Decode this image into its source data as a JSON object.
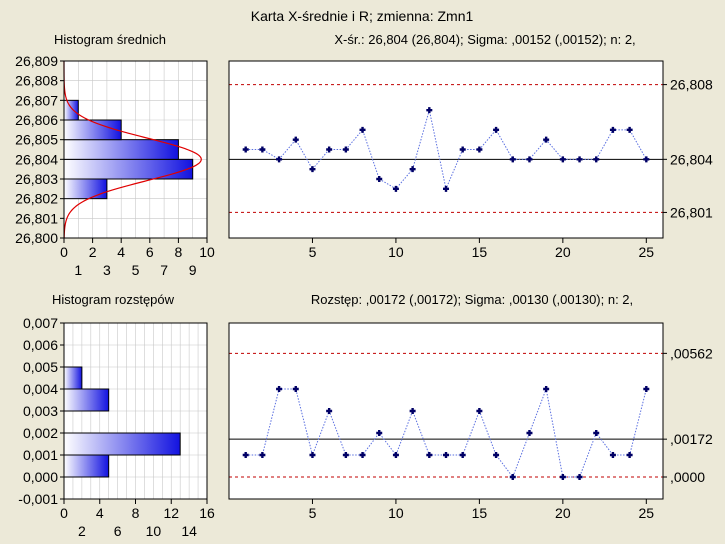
{
  "header": {
    "title": "Karta X-średnie i R; zmienna:  Zmn1",
    "xbar_hist_title": "Histogram średnich",
    "xbar_stats": "X-śr.: 26,804 (26,804); Sigma: ,00152 (,00152); n: 2,",
    "range_hist_title": "Histogram rozstępów",
    "range_stats": "Rozstęp: ,00172 (,00172); Sigma: ,00130 (,00130); n: 2,"
  },
  "colors": {
    "background": "#ece9d8",
    "bar_dark": "#1212e0",
    "bar_light": "#ffffff",
    "line": "#5a6fe0",
    "marker": "#000066",
    "limit": "#c00000",
    "normal_curve": "#e00000"
  },
  "chart_data": [
    {
      "type": "bar",
      "orientation": "horizontal",
      "title": "Histogram średnich",
      "categories": [
        "26,800-26,801",
        "26,801-26,802",
        "26,802-26,803",
        "26,803-26,804",
        "26,804-26,805",
        "26,805-26,806",
        "26,806-26,807",
        "26,807-26,808",
        "26,808-26,809"
      ],
      "bins": [
        [
          26.8,
          26.801
        ],
        [
          26.801,
          26.802
        ],
        [
          26.802,
          26.803
        ],
        [
          26.803,
          26.804
        ],
        [
          26.804,
          26.805
        ],
        [
          26.805,
          26.806
        ],
        [
          26.806,
          26.807
        ],
        [
          26.807,
          26.808
        ],
        [
          26.808,
          26.809
        ]
      ],
      "values": [
        0,
        0,
        3,
        9,
        8,
        4,
        1,
        0,
        0
      ],
      "xlim": [
        0,
        10
      ],
      "ylim": [
        26.8,
        26.809
      ],
      "x_ticks_top": [
        "0",
        "2",
        "4",
        "6",
        "8",
        "10"
      ],
      "x_ticks_top_values": [
        0,
        2,
        4,
        6,
        8,
        10
      ],
      "x_ticks_bottom": [
        "1",
        "3",
        "5",
        "7",
        "9"
      ],
      "x_ticks_bottom_values": [
        1,
        3,
        5,
        7,
        9
      ],
      "y_ticks": [
        "26,800",
        "26,801",
        "26,802",
        "26,803",
        "26,804",
        "26,805",
        "26,806",
        "26,807",
        "26,808",
        "26,809"
      ],
      "y_tick_values": [
        26.8,
        26.801,
        26.802,
        26.803,
        26.804,
        26.805,
        26.806,
        26.807,
        26.808,
        26.809
      ],
      "normal_curve": {
        "mean": 26.804,
        "sigma": 0.00108,
        "peak": 9.6
      },
      "grid": true
    },
    {
      "type": "line",
      "title": "X-średnie",
      "x": [
        1,
        2,
        3,
        4,
        5,
        6,
        7,
        8,
        9,
        10,
        11,
        12,
        13,
        14,
        15,
        16,
        17,
        18,
        19,
        20,
        21,
        22,
        23,
        24,
        25
      ],
      "values": [
        26.8045,
        26.8045,
        26.804,
        26.805,
        26.8035,
        26.8045,
        26.8045,
        26.8055,
        26.803,
        26.8025,
        26.8035,
        26.8065,
        26.8025,
        26.8045,
        26.8045,
        26.8055,
        26.804,
        26.804,
        26.805,
        26.804,
        26.804,
        26.804,
        26.8055,
        26.8055,
        26.804
      ],
      "xlim": [
        0,
        26
      ],
      "ylim": [
        26.8,
        26.809
      ],
      "x_ticks": [
        "5",
        "10",
        "15",
        "20",
        "25"
      ],
      "x_tick_values": [
        5,
        10,
        15,
        20,
        25
      ],
      "center_line": 26.804,
      "ucl": 26.8078,
      "lcl": 26.8013,
      "right_labels": [
        "26,808",
        "26,804",
        "26,801"
      ],
      "right_label_values": [
        26.8078,
        26.804,
        26.8013
      ]
    },
    {
      "type": "bar",
      "orientation": "horizontal",
      "title": "Histogram rozstępów",
      "categories": [
        "0,000-0,001",
        "0,001-0,002",
        "0,002-0,003",
        "0,003-0,004",
        "0,004-0,005",
        "0,005-0,006",
        "0,006-0,007"
      ],
      "bins": [
        [
          0.0,
          0.001
        ],
        [
          0.001,
          0.002
        ],
        [
          0.002,
          0.003
        ],
        [
          0.003,
          0.004
        ],
        [
          0.004,
          0.005
        ],
        [
          0.005,
          0.006
        ],
        [
          0.006,
          0.007
        ]
      ],
      "values": [
        5,
        13,
        0,
        5,
        2,
        0,
        0
      ],
      "xlim": [
        0,
        16
      ],
      "ylim": [
        -0.001,
        0.007
      ],
      "x_ticks_top": [
        "0",
        "4",
        "8",
        "12",
        "16"
      ],
      "x_ticks_top_values": [
        0,
        4,
        8,
        12,
        16
      ],
      "x_ticks_bottom": [
        "2",
        "6",
        "10",
        "14"
      ],
      "x_ticks_bottom_values": [
        2,
        6,
        10,
        14
      ],
      "y_ticks": [
        "-0,001",
        "0,000",
        "0,001",
        "0,002",
        "0,003",
        "0,004",
        "0,005",
        "0,006",
        "0,007"
      ],
      "y_tick_values": [
        -0.001,
        0.0,
        0.001,
        0.002,
        0.003,
        0.004,
        0.005,
        0.006,
        0.007
      ],
      "grid": true
    },
    {
      "type": "line",
      "title": "Rozstęp",
      "x": [
        1,
        2,
        3,
        4,
        5,
        6,
        7,
        8,
        9,
        10,
        11,
        12,
        13,
        14,
        15,
        16,
        17,
        18,
        19,
        20,
        21,
        22,
        23,
        24,
        25
      ],
      "values": [
        0.001,
        0.001,
        0.004,
        0.004,
        0.001,
        0.003,
        0.001,
        0.001,
        0.002,
        0.001,
        0.003,
        0.001,
        0.001,
        0.001,
        0.003,
        0.001,
        0.0,
        0.002,
        0.004,
        0.0,
        0.0,
        0.002,
        0.001,
        0.001,
        0.004
      ],
      "xlim": [
        0,
        26
      ],
      "ylim": [
        -0.001,
        0.007
      ],
      "x_ticks": [
        "5",
        "10",
        "15",
        "20",
        "25"
      ],
      "x_tick_values": [
        5,
        10,
        15,
        20,
        25
      ],
      "center_line": 0.00172,
      "ucl": 0.00562,
      "lcl": 0.0,
      "right_labels": [
        ",00562",
        ",00172",
        ",0000"
      ],
      "right_label_values": [
        0.00562,
        0.00172,
        0.0
      ]
    }
  ]
}
